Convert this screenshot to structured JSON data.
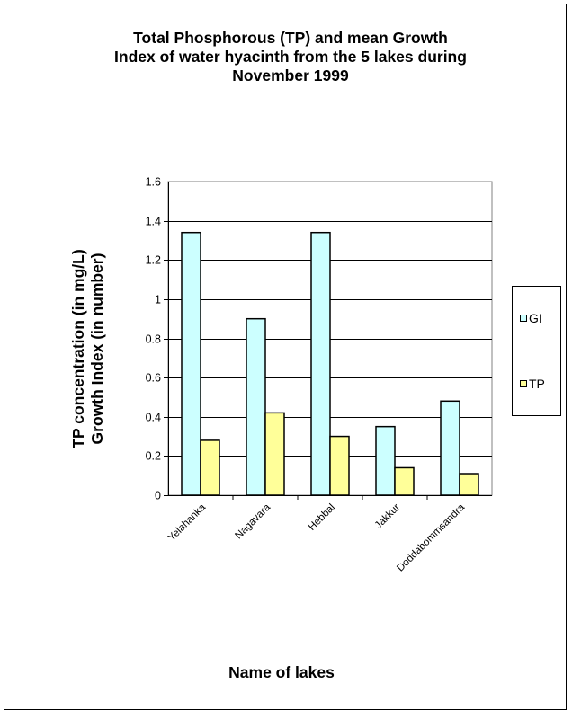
{
  "chart_data": {
    "type": "bar",
    "title_lines": [
      "Total Phosphorous (TP) and mean Growth",
      "Index of water hyacinth from the 5 lakes during",
      "November 1999"
    ],
    "ylabel_lines": [
      "TP concentration (in mg/L)",
      "Growth Index (in number)"
    ],
    "xlabel": "Name of lakes",
    "categories": [
      "Yelahanka",
      "Nagavara",
      "Hebbal",
      "Jakkur",
      "Doddabommsandra"
    ],
    "series": [
      {
        "name": "GI",
        "values": [
          1.34,
          0.9,
          1.34,
          0.35,
          0.48
        ],
        "color": "#ccffff"
      },
      {
        "name": "TP",
        "values": [
          0.28,
          0.42,
          0.3,
          0.14,
          0.11
        ],
        "color": "#ffff99"
      }
    ],
    "ylim": [
      0,
      1.6
    ],
    "yticks": [
      "0",
      "0.2",
      "0.4",
      "0.6",
      "0.8",
      "1",
      "1.2",
      "1.4",
      "1.6"
    ],
    "grid": true,
    "legend_position": "right"
  }
}
